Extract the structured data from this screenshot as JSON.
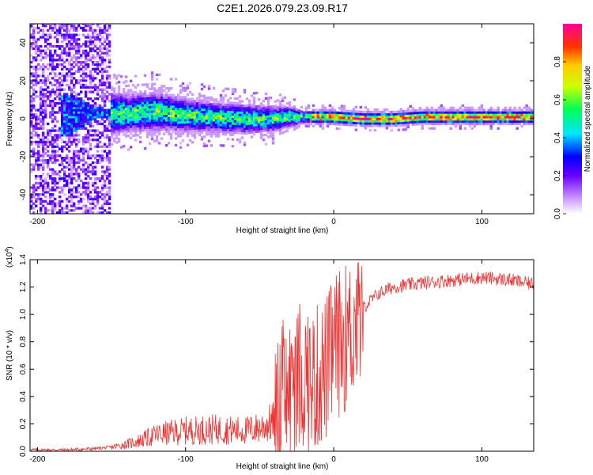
{
  "title": "C2E1.2026.079.23.09.R17",
  "chart_data": [
    {
      "type": "heatmap",
      "xlabel": "Height of straight line (km)",
      "ylabel": "Frequency (Hz)",
      "xlim": [
        -205,
        135
      ],
      "ylim": [
        -50,
        50
      ],
      "xticks": [
        -200,
        -100,
        0,
        100
      ],
      "yticks": [
        -40,
        -20,
        0,
        20,
        40
      ],
      "description_of_field": "Scattered broadband noise at low heights narrowing to a stable near-0 Hz line above about -20 km",
      "ridge": {
        "x": [
          -200,
          -180,
          -170,
          -160,
          -140,
          -120,
          -100,
          -80,
          -60,
          -40,
          -30,
          -20,
          -10,
          0,
          20,
          40,
          60,
          80,
          100,
          120,
          135
        ],
        "center_hz": [
          0,
          2,
          3,
          3,
          3,
          4,
          2,
          1,
          0,
          0,
          1,
          1,
          1,
          1,
          0,
          0,
          1,
          1,
          1,
          1,
          1
        ],
        "halfwidth_hz": [
          45,
          45,
          30,
          12,
          9,
          9,
          8,
          7,
          7,
          6,
          5,
          3,
          3,
          3,
          3,
          3,
          3,
          3,
          3,
          3,
          3
        ]
      },
      "colorbar": {
        "label": "Normalized spectral amplitude",
        "range": [
          0,
          1
        ],
        "ticks": [
          0.0,
          0.2,
          0.4,
          0.6,
          0.8
        ]
      }
    },
    {
      "type": "line",
      "xlabel": "Height of straight line (km)",
      "ylabel": "SNR (10 * v/v)",
      "multiplier_label": "(x10",
      "multiplier_exp": "4",
      "multiplier_close": ")",
      "xlim": [
        -205,
        135
      ],
      "ylim": [
        0,
        1.4
      ],
      "xticks": [
        -200,
        -100,
        0,
        100
      ],
      "yticks": [
        0.0,
        0.2,
        0.4,
        0.6,
        0.8,
        1.0,
        1.2,
        1.4
      ],
      "series": [
        {
          "name": "SNR",
          "color": "#ee3333",
          "x": [
            -205,
            -180,
            -160,
            -150,
            -140,
            -130,
            -120,
            -100,
            -80,
            -60,
            -50,
            -40,
            -35,
            -30,
            -25,
            -20,
            -15,
            -10,
            -5,
            0,
            5,
            10,
            15,
            20,
            30,
            40,
            60,
            80,
            100,
            120,
            135
          ],
          "y": [
            0.01,
            0.01,
            0.02,
            0.03,
            0.05,
            0.08,
            0.12,
            0.15,
            0.16,
            0.15,
            0.17,
            0.22,
            0.35,
            0.45,
            0.5,
            0.55,
            0.5,
            0.55,
            0.6,
            0.75,
            0.8,
            0.85,
            0.95,
            1.05,
            1.15,
            1.2,
            1.23,
            1.25,
            1.27,
            1.25,
            1.22
          ]
        }
      ]
    }
  ]
}
